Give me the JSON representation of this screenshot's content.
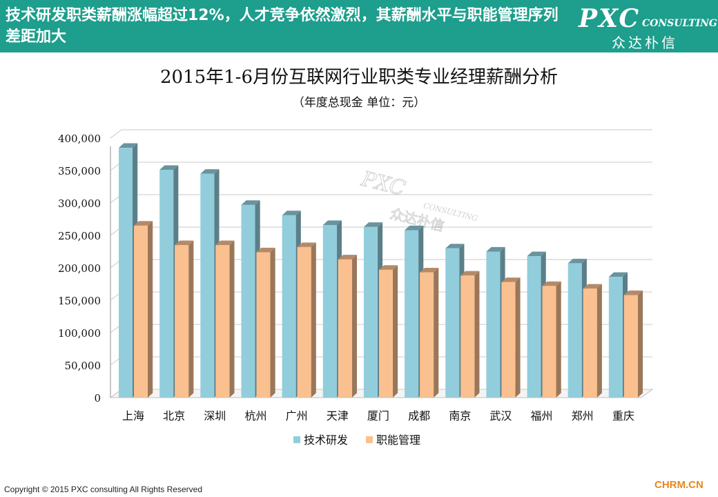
{
  "header": {
    "title": "技术研发职类薪酬涨幅超过12%，人才竞争依然激烈，其薪酬水平与职能管理序列差距加大",
    "logo_main": "PXC",
    "logo_sub": "CONSULTING",
    "logo_cn": "众达朴信"
  },
  "chart_data": {
    "type": "bar",
    "title": "2015年1-6月份互联网行业职类专业经理薪酬分析",
    "subtitle": "（年度总现金 单位：元）",
    "categories": [
      "上海",
      "北京",
      "深圳",
      "杭州",
      "广州",
      "天津",
      "厦门",
      "成都",
      "南京",
      "武汉",
      "福州",
      "郑州",
      "重庆"
    ],
    "series": [
      {
        "name": "技术研发",
        "color": "#92cddc",
        "values": [
          385000,
          351000,
          345000,
          297000,
          281000,
          266000,
          263000,
          258000,
          230000,
          225000,
          218000,
          207000,
          186000
        ]
      },
      {
        "name": "职能管理",
        "color": "#fac090",
        "values": [
          265000,
          235000,
          235000,
          224000,
          232000,
          213000,
          197000,
          193000,
          188000,
          178000,
          172000,
          168000,
          158000
        ]
      }
    ],
    "ylim": [
      0,
      400000
    ],
    "yticks": [
      "0",
      "50,000",
      "100,000",
      "150,000",
      "200,000",
      "250,000",
      "300,000",
      "350,000",
      "400,000"
    ],
    "grid": true,
    "legend": "bottom",
    "watermark_main": "PXC",
    "watermark_sub": "CONSULTING",
    "watermark_cn": "众达朴信"
  },
  "footer": {
    "copyright": "Copyright © 2015  PXC consulting All Rights Reserved",
    "site": "CHRM.CN"
  }
}
